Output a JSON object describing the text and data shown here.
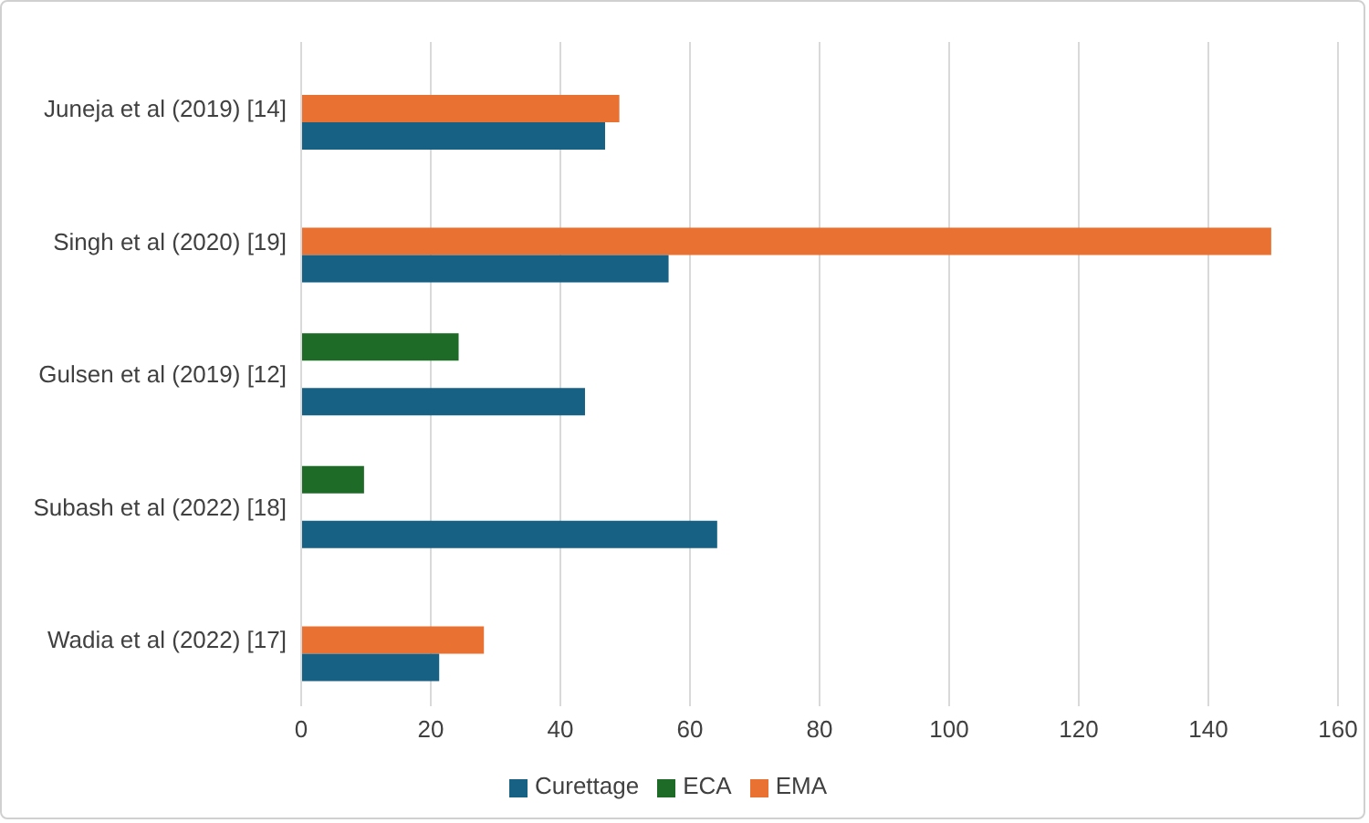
{
  "chart_data": {
    "type": "bar",
    "orientation": "horizontal",
    "categories": [
      "Juneja et al (2019) [14]",
      "Singh et al (2020) [19]",
      "Gulsen et al (2019) [12]",
      "Subash et al (2022) [18]",
      "Wadia et al (2022) [17]"
    ],
    "series": [
      {
        "name": "ECA",
        "color": "#1e6b27",
        "values": [
          null,
          null,
          24.3,
          9.7,
          null
        ]
      },
      {
        "name": "EMA",
        "color": "#e97132",
        "values": [
          49.1,
          149.7,
          null,
          null,
          28.2
        ]
      },
      {
        "name": "Curettage",
        "color": "#176185",
        "values": [
          46.9,
          56.7,
          43.8,
          64.2,
          21.3
        ]
      }
    ],
    "xlim": [
      0,
      160
    ],
    "xticks": [
      0,
      20,
      40,
      60,
      80,
      100,
      120,
      140,
      160
    ],
    "grid": "x",
    "legend": "bottom"
  }
}
